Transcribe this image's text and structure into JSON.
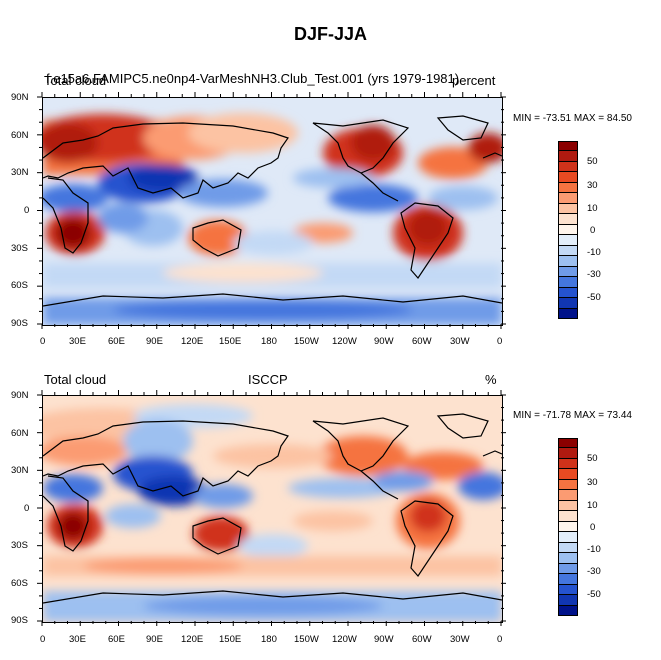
{
  "title": "DJF-JJA",
  "panels": [
    {
      "left_label": "Total cloud",
      "center_label": "f.e15a6.FAMIPC5.ne0np4-VarMeshNH3.Club_Test.001 (yrs 1979-1981)",
      "right_label": "percent",
      "min_max": "MIN = -73.51 MAX =  84.50"
    },
    {
      "left_label": "Total cloud",
      "center_label": "ISCCP",
      "right_label": "%",
      "min_max": "MIN = -71.78 MAX =  73.44"
    }
  ],
  "axes": {
    "lat_labels": [
      "90N",
      "60N",
      "30N",
      "0",
      "30S",
      "60S",
      "90S"
    ],
    "lon_labels": [
      "0",
      "30E",
      "60E",
      "90E",
      "120E",
      "150E",
      "180",
      "150W",
      "120W",
      "90W",
      "60W",
      "30W",
      "0"
    ]
  },
  "colorbar": {
    "labels": [
      "50",
      "30",
      "10",
      "0",
      "-10",
      "-30",
      "-50"
    ],
    "colors": [
      "#8b0000",
      "#b01a10",
      "#d0321a",
      "#e84a22",
      "#f57341",
      "#fb9b72",
      "#fcc3a3",
      "#fde2cf",
      "#fff5ec",
      "#e3eefa",
      "#c3d9f5",
      "#9dc0f0",
      "#6f9be8",
      "#4476de",
      "#2553cf",
      "#1136b2",
      "#00128a"
    ]
  },
  "chart_data": {
    "type": "heatmap",
    "plot_kind": "global filled contour map (cylindrical equidistant)",
    "title": "DJF-JJA",
    "variable": "Total cloud",
    "units": "percent",
    "x": "longitude (0 to 360)",
    "y": "latitude (-90 to 90)",
    "contour_levels": [
      -60,
      -50,
      -40,
      -30,
      -20,
      -15,
      -10,
      -5,
      0,
      5,
      10,
      15,
      20,
      30,
      40,
      50,
      60
    ],
    "panels": [
      {
        "name": "f.e15a6.FAMIPC5.ne0np4-VarMeshNH3.Club_Test.001 (yrs 1979-1981)",
        "min": -73.51,
        "max": 84.5,
        "features": [
          {
            "lon": 25,
            "lat": -15,
            "value": 60,
            "label": "southern Africa max"
          },
          {
            "lon": 300,
            "lat": -15,
            "value": 50,
            "label": "South America max"
          },
          {
            "lon": 135,
            "lat": -20,
            "value": 40,
            "label": "Australia"
          },
          {
            "lon": 60,
            "lat": 50,
            "value": 40,
            "label": "Eurasia"
          },
          {
            "lon": 280,
            "lat": 45,
            "value": 40,
            "label": "North America"
          },
          {
            "lon": 80,
            "lat": 20,
            "value": -55,
            "label": "South Asia monsoon"
          },
          {
            "lon": 20,
            "lat": 10,
            "value": -45,
            "label": "Sahel"
          },
          {
            "lon": 260,
            "lat": 10,
            "value": -45,
            "label": "Central America"
          },
          {
            "lon": 330,
            "lat": -70,
            "value": -30,
            "label": "Antarctica"
          }
        ]
      },
      {
        "name": "ISCCP",
        "min": -71.78,
        "max": 73.44,
        "features": [
          {
            "lon": 25,
            "lat": -15,
            "value": 50,
            "label": "southern Africa max"
          },
          {
            "lon": 305,
            "lat": -15,
            "value": 45,
            "label": "South America max"
          },
          {
            "lon": 135,
            "lat": -20,
            "value": 35,
            "label": "Australia"
          },
          {
            "lon": 280,
            "lat": 35,
            "value": 30,
            "label": "North America"
          },
          {
            "lon": 85,
            "lat": 20,
            "value": -55,
            "label": "South Asia monsoon"
          },
          {
            "lon": 15,
            "lat": 10,
            "value": -40,
            "label": "Sahel"
          },
          {
            "lon": 260,
            "lat": 15,
            "value": -40,
            "label": "Central America"
          },
          {
            "lon": 330,
            "lat": -70,
            "value": -20,
            "label": "Antarctica"
          }
        ]
      }
    ]
  }
}
